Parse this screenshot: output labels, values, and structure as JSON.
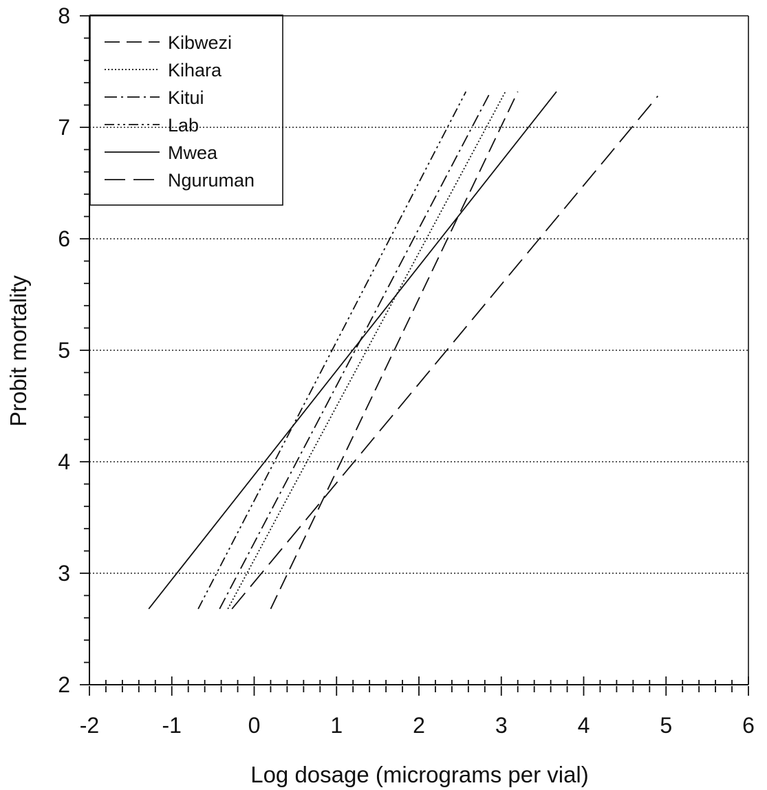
{
  "chart_data": {
    "type": "line",
    "xlabel": "Log dosage (micrograms per vial)",
    "ylabel": "Probit mortality",
    "xlim": [
      -2,
      6
    ],
    "ylim": [
      2,
      8
    ],
    "x_ticks": [
      -2,
      -1,
      0,
      1,
      2,
      3,
      4,
      5,
      6
    ],
    "y_ticks": [
      2,
      3,
      4,
      5,
      6,
      7,
      8
    ],
    "grid": {
      "horizontal_dotted_at": [
        3,
        4,
        5,
        6,
        7
      ]
    },
    "legend": {
      "position": "top-left"
    },
    "series": [
      {
        "name": "Kibwezi",
        "dash": "long-dash",
        "points": [
          [
            0.2,
            2.68
          ],
          [
            3.2,
            7.32
          ]
        ]
      },
      {
        "name": "Kihara",
        "dash": "dotted",
        "points": [
          [
            -0.32,
            2.68
          ],
          [
            3.05,
            7.32
          ]
        ]
      },
      {
        "name": "Kitui",
        "dash": "dash-dot",
        "points": [
          [
            -0.42,
            2.68
          ],
          [
            2.87,
            7.32
          ]
        ]
      },
      {
        "name": "Lab",
        "dash": "dash-dot-dot",
        "points": [
          [
            -0.68,
            2.68
          ],
          [
            2.57,
            7.32
          ]
        ]
      },
      {
        "name": "Mwea",
        "dash": "solid",
        "points": [
          [
            -1.28,
            2.68
          ],
          [
            3.67,
            7.32
          ]
        ]
      },
      {
        "name": "Nguruman",
        "dash": "long-long-dash",
        "points": [
          [
            -0.27,
            2.68
          ],
          [
            4.9,
            7.28
          ]
        ]
      }
    ]
  }
}
